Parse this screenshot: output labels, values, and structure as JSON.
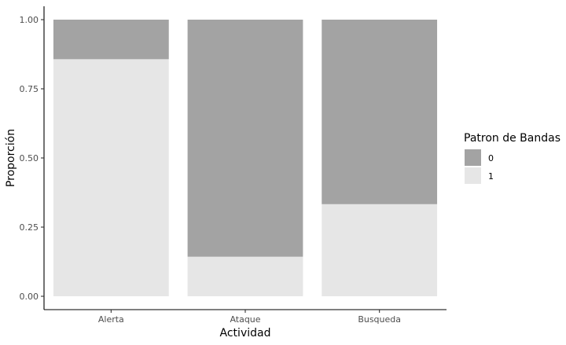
{
  "chart_data": {
    "type": "bar",
    "stacked": true,
    "normalized": true,
    "title": "",
    "xlabel": "Actividad",
    "ylabel": "Proporción",
    "categories": [
      "Alerta",
      "Ataque",
      "Busqueda"
    ],
    "ylim": [
      0,
      1
    ],
    "yticks": [
      "0.00",
      "0.25",
      "0.50",
      "0.75",
      "1.00"
    ],
    "grid": false,
    "legend": {
      "title": "Patron de Bandas",
      "position": "right"
    },
    "series": [
      {
        "name": "0",
        "color": "#a3a3a3",
        "values": [
          0.143,
          0.857,
          0.667
        ]
      },
      {
        "name": "1",
        "color": "#e6e6e6",
        "values": [
          0.857,
          0.143,
          0.333
        ]
      }
    ]
  }
}
